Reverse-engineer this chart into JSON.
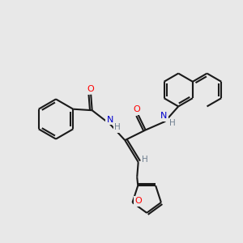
{
  "background_color": "#e8e8e8",
  "bond_color": "#1a1a1a",
  "atom_colors": {
    "O": "#ff0000",
    "N": "#0000cd",
    "H": "#708090",
    "C": "#1a1a1a"
  },
  "lw": 1.5,
  "fs": 7.5
}
